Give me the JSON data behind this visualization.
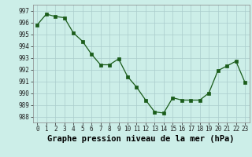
{
  "x": [
    0,
    1,
    2,
    3,
    4,
    5,
    6,
    7,
    8,
    9,
    10,
    11,
    12,
    13,
    14,
    15,
    16,
    17,
    18,
    19,
    20,
    21,
    22,
    23
  ],
  "y": [
    995.8,
    996.7,
    996.5,
    996.4,
    995.1,
    994.4,
    993.3,
    992.4,
    992.4,
    992.9,
    991.4,
    990.5,
    989.4,
    988.4,
    988.3,
    989.6,
    989.4,
    989.4,
    989.4,
    990.0,
    991.9,
    992.3,
    992.7,
    990.9
  ],
  "line_color": "#1a5c1a",
  "marker_color": "#1a5c1a",
  "bg_color": "#cceee8",
  "grid_color": "#aacccc",
  "xlabel": "Graphe pression niveau de la mer (hPa)",
  "ylim": [
    987.5,
    997.5
  ],
  "xlim": [
    -0.5,
    23.5
  ],
  "yticks": [
    988,
    989,
    990,
    991,
    992,
    993,
    994,
    995,
    996,
    997
  ],
  "xticks": [
    0,
    1,
    2,
    3,
    4,
    5,
    6,
    7,
    8,
    9,
    10,
    11,
    12,
    13,
    14,
    15,
    16,
    17,
    18,
    19,
    20,
    21,
    22,
    23
  ],
  "xtick_labels": [
    "0",
    "1",
    "2",
    "3",
    "4",
    "5",
    "6",
    "7",
    "8",
    "9",
    "10",
    "11",
    "12",
    "13",
    "14",
    "15",
    "16",
    "17",
    "18",
    "19",
    "20",
    "21",
    "22",
    "23"
  ],
  "tick_fontsize": 5.5,
  "label_fontsize": 7.5
}
